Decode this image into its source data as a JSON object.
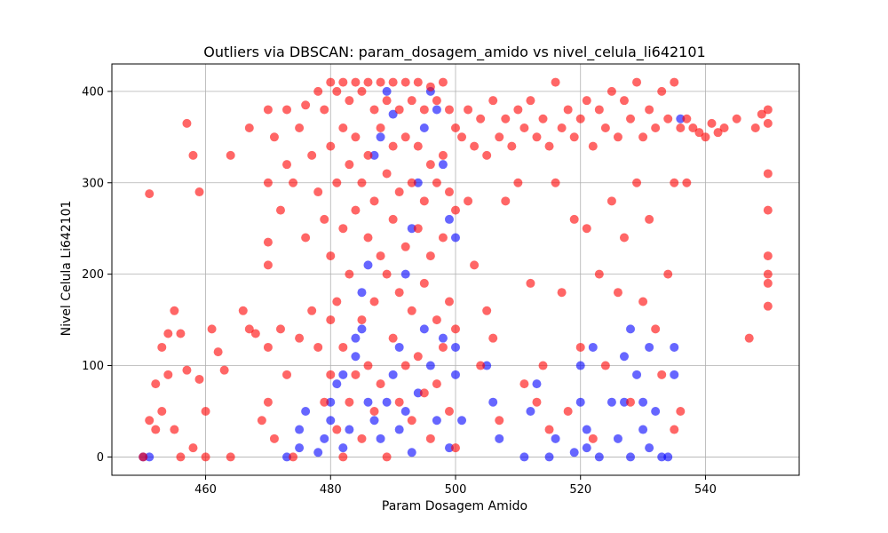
{
  "chart_data": {
    "type": "scatter",
    "title": "Outliers via DBSCAN: param_dosagem_amido vs nivel_celula_li642101",
    "xlabel": "Param Dosagem Amido",
    "ylabel": "Nivel Celula Li642101",
    "xlim": [
      445,
      555
    ],
    "ylim": [
      -20,
      430
    ],
    "xticks": [
      460,
      480,
      500,
      520,
      540
    ],
    "yticks": [
      0,
      100,
      200,
      300,
      400
    ],
    "grid": true,
    "colors": {
      "inlier": "#0000ff",
      "outlier": "#ff0000"
    },
    "series": [
      {
        "color": "#0000ff",
        "points": [
          [
            450,
            0
          ],
          [
            451,
            0
          ],
          [
            473,
            0
          ],
          [
            475,
            10
          ],
          [
            475,
            30
          ],
          [
            476,
            50
          ],
          [
            478,
            5
          ],
          [
            479,
            20
          ],
          [
            480,
            40
          ],
          [
            480,
            60
          ],
          [
            481,
            80
          ],
          [
            482,
            90
          ],
          [
            482,
            10
          ],
          [
            483,
            30
          ],
          [
            484,
            130
          ],
          [
            484,
            110
          ],
          [
            485,
            140
          ],
          [
            485,
            180
          ],
          [
            486,
            210
          ],
          [
            486,
            60
          ],
          [
            487,
            40
          ],
          [
            487,
            330
          ],
          [
            488,
            350
          ],
          [
            488,
            20
          ],
          [
            489,
            400
          ],
          [
            489,
            60
          ],
          [
            490,
            375
          ],
          [
            490,
            90
          ],
          [
            491,
            120
          ],
          [
            491,
            30
          ],
          [
            492,
            200
          ],
          [
            492,
            50
          ],
          [
            493,
            250
          ],
          [
            493,
            5
          ],
          [
            494,
            300
          ],
          [
            494,
            70
          ],
          [
            495,
            360
          ],
          [
            495,
            140
          ],
          [
            496,
            400
          ],
          [
            496,
            100
          ],
          [
            497,
            380
          ],
          [
            497,
            40
          ],
          [
            498,
            320
          ],
          [
            498,
            130
          ],
          [
            499,
            260
          ],
          [
            499,
            10
          ],
          [
            500,
            240
          ],
          [
            500,
            90
          ],
          [
            500,
            120
          ],
          [
            501,
            40
          ],
          [
            505,
            100
          ],
          [
            506,
            60
          ],
          [
            507,
            20
          ],
          [
            511,
            0
          ],
          [
            512,
            50
          ],
          [
            513,
            80
          ],
          [
            515,
            0
          ],
          [
            516,
            20
          ],
          [
            519,
            5
          ],
          [
            520,
            100
          ],
          [
            520,
            60
          ],
          [
            521,
            30
          ],
          [
            521,
            10
          ],
          [
            522,
            120
          ],
          [
            523,
            0
          ],
          [
            525,
            60
          ],
          [
            526,
            20
          ],
          [
            527,
            110
          ],
          [
            527,
            60
          ],
          [
            528,
            140
          ],
          [
            528,
            0
          ],
          [
            529,
            90
          ],
          [
            530,
            30
          ],
          [
            530,
            60
          ],
          [
            531,
            120
          ],
          [
            531,
            10
          ],
          [
            532,
            50
          ],
          [
            533,
            0
          ],
          [
            534,
            0
          ],
          [
            535,
            120
          ],
          [
            535,
            90
          ],
          [
            536,
            370
          ]
        ]
      },
      {
        "color": "#ff0000",
        "points": [
          [
            450,
            0
          ],
          [
            451,
            288
          ],
          [
            451,
            40
          ],
          [
            452,
            30
          ],
          [
            452,
            80
          ],
          [
            453,
            120
          ],
          [
            453,
            50
          ],
          [
            454,
            135
          ],
          [
            454,
            90
          ],
          [
            455,
            160
          ],
          [
            455,
            30
          ],
          [
            456,
            135
          ],
          [
            456,
            0
          ],
          [
            457,
            365
          ],
          [
            457,
            95
          ],
          [
            458,
            330
          ],
          [
            458,
            10
          ],
          [
            459,
            290
          ],
          [
            459,
            85
          ],
          [
            460,
            50
          ],
          [
            460,
            0
          ],
          [
            461,
            140
          ],
          [
            462,
            115
          ],
          [
            463,
            95
          ],
          [
            464,
            330
          ],
          [
            464,
            0
          ],
          [
            466,
            160
          ],
          [
            467,
            360
          ],
          [
            467,
            140
          ],
          [
            468,
            135
          ],
          [
            469,
            40
          ],
          [
            470,
            380
          ],
          [
            470,
            300
          ],
          [
            470,
            235
          ],
          [
            470,
            210
          ],
          [
            470,
            120
          ],
          [
            470,
            60
          ],
          [
            471,
            350
          ],
          [
            471,
            20
          ],
          [
            472,
            270
          ],
          [
            472,
            140
          ],
          [
            473,
            380
          ],
          [
            473,
            320
          ],
          [
            473,
            90
          ],
          [
            474,
            300
          ],
          [
            474,
            0
          ],
          [
            475,
            360
          ],
          [
            475,
            130
          ],
          [
            476,
            385
          ],
          [
            476,
            240
          ],
          [
            477,
            330
          ],
          [
            477,
            160
          ],
          [
            478,
            400
          ],
          [
            478,
            290
          ],
          [
            478,
            120
          ],
          [
            479,
            380
          ],
          [
            479,
            260
          ],
          [
            479,
            60
          ],
          [
            480,
            410
          ],
          [
            480,
            340
          ],
          [
            480,
            220
          ],
          [
            480,
            150
          ],
          [
            480,
            90
          ],
          [
            481,
            400
          ],
          [
            481,
            300
          ],
          [
            481,
            170
          ],
          [
            481,
            30
          ],
          [
            482,
            410
          ],
          [
            482,
            360
          ],
          [
            482,
            250
          ],
          [
            482,
            120
          ],
          [
            482,
            0
          ],
          [
            483,
            390
          ],
          [
            483,
            320
          ],
          [
            483,
            200
          ],
          [
            483,
            60
          ],
          [
            484,
            410
          ],
          [
            484,
            350
          ],
          [
            484,
            270
          ],
          [
            484,
            90
          ],
          [
            485,
            400
          ],
          [
            485,
            300
          ],
          [
            485,
            150
          ],
          [
            485,
            20
          ],
          [
            486,
            410
          ],
          [
            486,
            330
          ],
          [
            486,
            240
          ],
          [
            486,
            100
          ],
          [
            487,
            380
          ],
          [
            487,
            280
          ],
          [
            487,
            170
          ],
          [
            487,
            50
          ],
          [
            488,
            410
          ],
          [
            488,
            360
          ],
          [
            488,
            220
          ],
          [
            488,
            80
          ],
          [
            489,
            390
          ],
          [
            489,
            310
          ],
          [
            489,
            200
          ],
          [
            489,
            0
          ],
          [
            490,
            410
          ],
          [
            490,
            340
          ],
          [
            490,
            260
          ],
          [
            490,
            130
          ],
          [
            491,
            380
          ],
          [
            491,
            290
          ],
          [
            491,
            180
          ],
          [
            491,
            60
          ],
          [
            492,
            410
          ],
          [
            492,
            350
          ],
          [
            492,
            230
          ],
          [
            492,
            100
          ],
          [
            493,
            390
          ],
          [
            493,
            300
          ],
          [
            493,
            160
          ],
          [
            493,
            40
          ],
          [
            494,
            410
          ],
          [
            494,
            340
          ],
          [
            494,
            250
          ],
          [
            494,
            110
          ],
          [
            495,
            380
          ],
          [
            495,
            280
          ],
          [
            495,
            190
          ],
          [
            495,
            70
          ],
          [
            496,
            405
          ],
          [
            496,
            320
          ],
          [
            496,
            220
          ],
          [
            496,
            20
          ],
          [
            497,
            390
          ],
          [
            497,
            300
          ],
          [
            497,
            150
          ],
          [
            497,
            80
          ],
          [
            498,
            410
          ],
          [
            498,
            330
          ],
          [
            498,
            240
          ],
          [
            498,
            120
          ],
          [
            499,
            380
          ],
          [
            499,
            290
          ],
          [
            499,
            170
          ],
          [
            499,
            50
          ],
          [
            500,
            360
          ],
          [
            500,
            270
          ],
          [
            500,
            140
          ],
          [
            500,
            10
          ],
          [
            501,
            350
          ],
          [
            502,
            380
          ],
          [
            502,
            280
          ],
          [
            503,
            340
          ],
          [
            503,
            210
          ],
          [
            504,
            370
          ],
          [
            504,
            100
          ],
          [
            505,
            330
          ],
          [
            505,
            160
          ],
          [
            506,
            390
          ],
          [
            506,
            130
          ],
          [
            507,
            350
          ],
          [
            507,
            40
          ],
          [
            508,
            370
          ],
          [
            508,
            280
          ],
          [
            509,
            340
          ],
          [
            510,
            380
          ],
          [
            510,
            300
          ],
          [
            511,
            360
          ],
          [
            511,
            80
          ],
          [
            512,
            390
          ],
          [
            512,
            190
          ],
          [
            513,
            350
          ],
          [
            513,
            60
          ],
          [
            514,
            370
          ],
          [
            514,
            100
          ],
          [
            515,
            340
          ],
          [
            515,
            30
          ],
          [
            516,
            410
          ],
          [
            516,
            300
          ],
          [
            517,
            360
          ],
          [
            517,
            180
          ],
          [
            518,
            380
          ],
          [
            518,
            50
          ],
          [
            519,
            350
          ],
          [
            519,
            260
          ],
          [
            520,
            370
          ],
          [
            520,
            120
          ],
          [
            521,
            390
          ],
          [
            521,
            250
          ],
          [
            522,
            340
          ],
          [
            522,
            20
          ],
          [
            523,
            380
          ],
          [
            523,
            200
          ],
          [
            524,
            360
          ],
          [
            524,
            100
          ],
          [
            525,
            400
          ],
          [
            525,
            280
          ],
          [
            526,
            350
          ],
          [
            526,
            180
          ],
          [
            527,
            390
          ],
          [
            527,
            240
          ],
          [
            528,
            370
          ],
          [
            528,
            60
          ],
          [
            529,
            410
          ],
          [
            529,
            300
          ],
          [
            530,
            350
          ],
          [
            530,
            170
          ],
          [
            531,
            380
          ],
          [
            531,
            260
          ],
          [
            532,
            360
          ],
          [
            532,
            140
          ],
          [
            533,
            400
          ],
          [
            533,
            90
          ],
          [
            534,
            370
          ],
          [
            534,
            200
          ],
          [
            535,
            410
          ],
          [
            535,
            300
          ],
          [
            535,
            30
          ],
          [
            536,
            360
          ],
          [
            536,
            50
          ],
          [
            537,
            370
          ],
          [
            537,
            300
          ],
          [
            538,
            360
          ],
          [
            539,
            355
          ],
          [
            540,
            350
          ],
          [
            541,
            365
          ],
          [
            542,
            355
          ],
          [
            543,
            360
          ],
          [
            545,
            370
          ],
          [
            547,
            130
          ],
          [
            548,
            360
          ],
          [
            549,
            375
          ],
          [
            550,
            380
          ],
          [
            550,
            365
          ],
          [
            550,
            310
          ],
          [
            550,
            270
          ],
          [
            550,
            220
          ],
          [
            550,
            200
          ],
          [
            550,
            190
          ],
          [
            550,
            165
          ]
        ]
      }
    ]
  }
}
